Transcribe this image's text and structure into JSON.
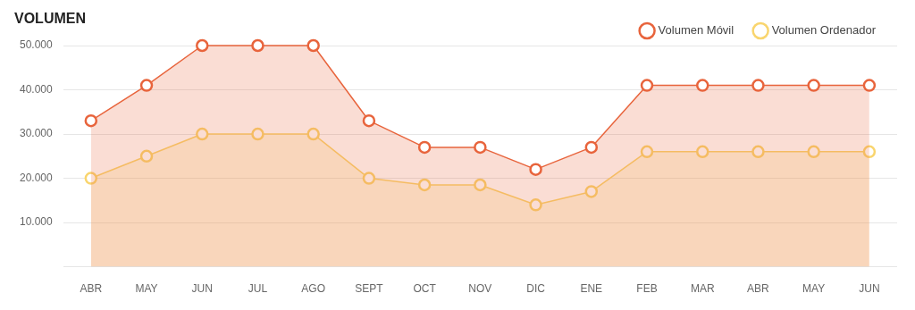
{
  "chart_data": {
    "type": "area",
    "title": "VOLUMEN",
    "categories": [
      "ABR",
      "MAY",
      "JUN",
      "JUL",
      "AGO",
      "SEPT",
      "OCT",
      "NOV",
      "DIC",
      "ENE",
      "FEB",
      "MAR",
      "ABR",
      "MAY",
      "JUN"
    ],
    "series": [
      {
        "name": "Volumen Móvil",
        "color": "#e8643c",
        "values": [
          33000,
          41000,
          50000,
          50000,
          50000,
          33000,
          27000,
          27000,
          22000,
          27000,
          41000,
          41000,
          41000,
          41000,
          41000
        ]
      },
      {
        "name": "Volumen Ordenador",
        "color": "#f9d56e",
        "values": [
          20000,
          25000,
          30000,
          30000,
          30000,
          20000,
          18500,
          18500,
          14000,
          17000,
          26000,
          26000,
          26000,
          26000,
          26000
        ]
      }
    ],
    "ylim": [
      0,
      50000
    ],
    "yticks": [
      {
        "value": 0,
        "label": null
      },
      {
        "value": 10000,
        "label": "10.000"
      },
      {
        "value": 20000,
        "label": "20.000"
      },
      {
        "value": 30000,
        "label": "30.000"
      },
      {
        "value": 40000,
        "label": "40.000"
      },
      {
        "value": 50000,
        "label": "50.000"
      }
    ],
    "grid": "y",
    "legend": "top right",
    "marker": "circle",
    "line_style": "solid"
  }
}
